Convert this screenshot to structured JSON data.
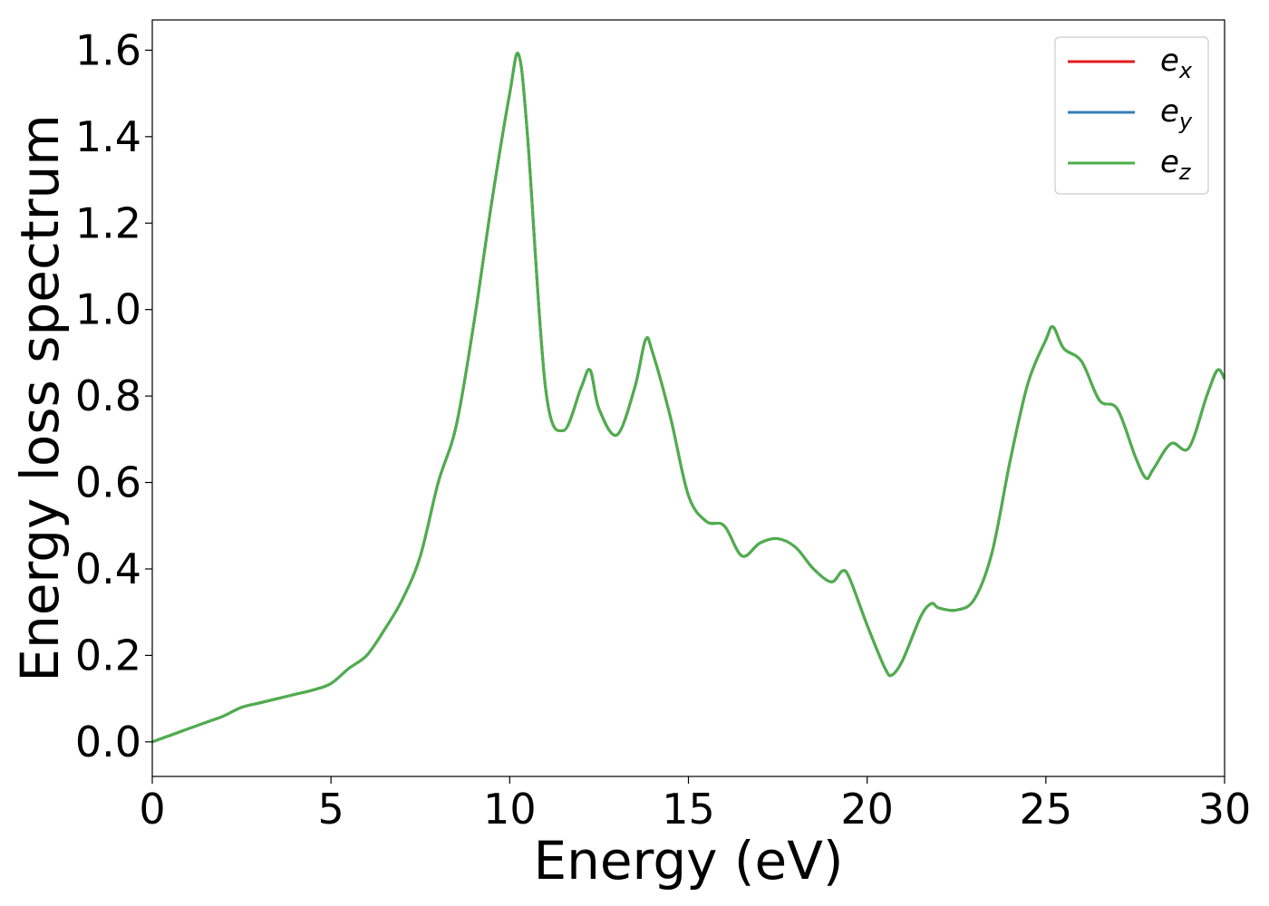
{
  "chart_data": {
    "type": "line",
    "title": "",
    "xlabel": "Energy (eV)",
    "ylabel": "Energy loss spectrum",
    "xlim": [
      0,
      30
    ],
    "ylim": [
      -0.08,
      1.67
    ],
    "xticks": [
      0,
      5,
      10,
      15,
      20,
      25,
      30
    ],
    "xtick_labels": [
      "0",
      "5",
      "10",
      "15",
      "20",
      "25",
      "30"
    ],
    "yticks": [
      0.0,
      0.2,
      0.4,
      0.6,
      0.8,
      1.0,
      1.2,
      1.4,
      1.6
    ],
    "ytick_labels": [
      "0.0",
      "0.2",
      "0.4",
      "0.6",
      "0.8",
      "1.0",
      "1.2",
      "1.4",
      "1.6"
    ],
    "grid": false,
    "legend_position": "top-right",
    "series": [
      {
        "name": "e_x",
        "legend_base": "e",
        "legend_sub": "x",
        "color": "#e41a1c",
        "x": [
          0,
          0.5,
          1.0,
          1.5,
          2.0,
          2.5,
          3.0,
          3.5,
          4.0,
          4.5,
          5.0,
          5.5,
          6.0,
          6.5,
          7.0,
          7.5,
          8.0,
          8.5,
          9.0,
          9.5,
          10.0,
          10.25,
          10.5,
          11.0,
          11.5,
          12.0,
          12.25,
          12.5,
          13.0,
          13.5,
          13.8,
          14.0,
          14.5,
          15.0,
          15.5,
          16.0,
          16.5,
          17.0,
          17.5,
          18.0,
          18.5,
          19.0,
          19.3,
          19.5,
          20.0,
          20.5,
          20.7,
          21.0,
          21.5,
          21.8,
          22.0,
          22.5,
          23.0,
          23.5,
          24.0,
          24.5,
          25.0,
          25.2,
          25.5,
          26.0,
          26.5,
          27.0,
          27.5,
          27.8,
          28.0,
          28.5,
          29.0,
          29.5,
          29.8,
          30.0
        ],
        "y": [
          0.0,
          0.015,
          0.03,
          0.045,
          0.06,
          0.08,
          0.09,
          0.1,
          0.11,
          0.12,
          0.135,
          0.17,
          0.2,
          0.26,
          0.33,
          0.43,
          0.6,
          0.73,
          0.97,
          1.25,
          1.5,
          1.59,
          1.4,
          0.82,
          0.72,
          0.82,
          0.86,
          0.77,
          0.71,
          0.82,
          0.93,
          0.9,
          0.75,
          0.57,
          0.51,
          0.5,
          0.43,
          0.46,
          0.47,
          0.45,
          0.4,
          0.37,
          0.395,
          0.38,
          0.27,
          0.17,
          0.155,
          0.19,
          0.29,
          0.32,
          0.31,
          0.305,
          0.33,
          0.44,
          0.65,
          0.83,
          0.93,
          0.96,
          0.91,
          0.88,
          0.79,
          0.77,
          0.66,
          0.61,
          0.63,
          0.69,
          0.68,
          0.8,
          0.86,
          0.84
        ]
      },
      {
        "name": "e_y",
        "legend_base": "e",
        "legend_sub": "y",
        "color": "#377eb8",
        "x": [
          0,
          0.5,
          1.0,
          1.5,
          2.0,
          2.5,
          3.0,
          3.5,
          4.0,
          4.5,
          5.0,
          5.5,
          6.0,
          6.5,
          7.0,
          7.5,
          8.0,
          8.5,
          9.0,
          9.5,
          10.0,
          10.25,
          10.5,
          11.0,
          11.5,
          12.0,
          12.25,
          12.5,
          13.0,
          13.5,
          13.8,
          14.0,
          14.5,
          15.0,
          15.5,
          16.0,
          16.5,
          17.0,
          17.5,
          18.0,
          18.5,
          19.0,
          19.3,
          19.5,
          20.0,
          20.5,
          20.7,
          21.0,
          21.5,
          21.8,
          22.0,
          22.5,
          23.0,
          23.5,
          24.0,
          24.5,
          25.0,
          25.2,
          25.5,
          26.0,
          26.5,
          27.0,
          27.5,
          27.8,
          28.0,
          28.5,
          29.0,
          29.5,
          29.8,
          30.0
        ],
        "y": [
          0.0,
          0.015,
          0.03,
          0.045,
          0.06,
          0.08,
          0.09,
          0.1,
          0.11,
          0.12,
          0.135,
          0.17,
          0.2,
          0.26,
          0.33,
          0.43,
          0.6,
          0.73,
          0.97,
          1.25,
          1.5,
          1.59,
          1.4,
          0.82,
          0.72,
          0.82,
          0.86,
          0.77,
          0.71,
          0.82,
          0.93,
          0.9,
          0.75,
          0.57,
          0.51,
          0.5,
          0.43,
          0.46,
          0.47,
          0.45,
          0.4,
          0.37,
          0.395,
          0.38,
          0.27,
          0.17,
          0.155,
          0.19,
          0.29,
          0.32,
          0.31,
          0.305,
          0.33,
          0.44,
          0.65,
          0.83,
          0.93,
          0.96,
          0.91,
          0.88,
          0.79,
          0.77,
          0.66,
          0.61,
          0.63,
          0.69,
          0.68,
          0.8,
          0.86,
          0.84
        ]
      },
      {
        "name": "e_z",
        "legend_base": "e",
        "legend_sub": "z",
        "color": "#4daf4a",
        "x": [
          0,
          0.5,
          1.0,
          1.5,
          2.0,
          2.5,
          3.0,
          3.5,
          4.0,
          4.5,
          5.0,
          5.5,
          6.0,
          6.5,
          7.0,
          7.5,
          8.0,
          8.5,
          9.0,
          9.5,
          10.0,
          10.25,
          10.5,
          11.0,
          11.5,
          12.0,
          12.25,
          12.5,
          13.0,
          13.5,
          13.8,
          14.0,
          14.5,
          15.0,
          15.5,
          16.0,
          16.5,
          17.0,
          17.5,
          18.0,
          18.5,
          19.0,
          19.3,
          19.5,
          20.0,
          20.5,
          20.7,
          21.0,
          21.5,
          21.8,
          22.0,
          22.5,
          23.0,
          23.5,
          24.0,
          24.5,
          25.0,
          25.2,
          25.5,
          26.0,
          26.5,
          27.0,
          27.5,
          27.8,
          28.0,
          28.5,
          29.0,
          29.5,
          29.8,
          30.0
        ],
        "y": [
          0.0,
          0.015,
          0.03,
          0.045,
          0.06,
          0.08,
          0.09,
          0.1,
          0.11,
          0.12,
          0.135,
          0.17,
          0.2,
          0.26,
          0.33,
          0.43,
          0.6,
          0.73,
          0.97,
          1.25,
          1.5,
          1.59,
          1.4,
          0.82,
          0.72,
          0.82,
          0.86,
          0.77,
          0.71,
          0.82,
          0.93,
          0.9,
          0.75,
          0.57,
          0.51,
          0.5,
          0.43,
          0.46,
          0.47,
          0.45,
          0.4,
          0.37,
          0.395,
          0.38,
          0.27,
          0.17,
          0.155,
          0.19,
          0.29,
          0.32,
          0.31,
          0.305,
          0.33,
          0.44,
          0.65,
          0.83,
          0.93,
          0.96,
          0.91,
          0.88,
          0.79,
          0.77,
          0.66,
          0.61,
          0.63,
          0.69,
          0.68,
          0.8,
          0.86,
          0.84
        ]
      }
    ]
  }
}
